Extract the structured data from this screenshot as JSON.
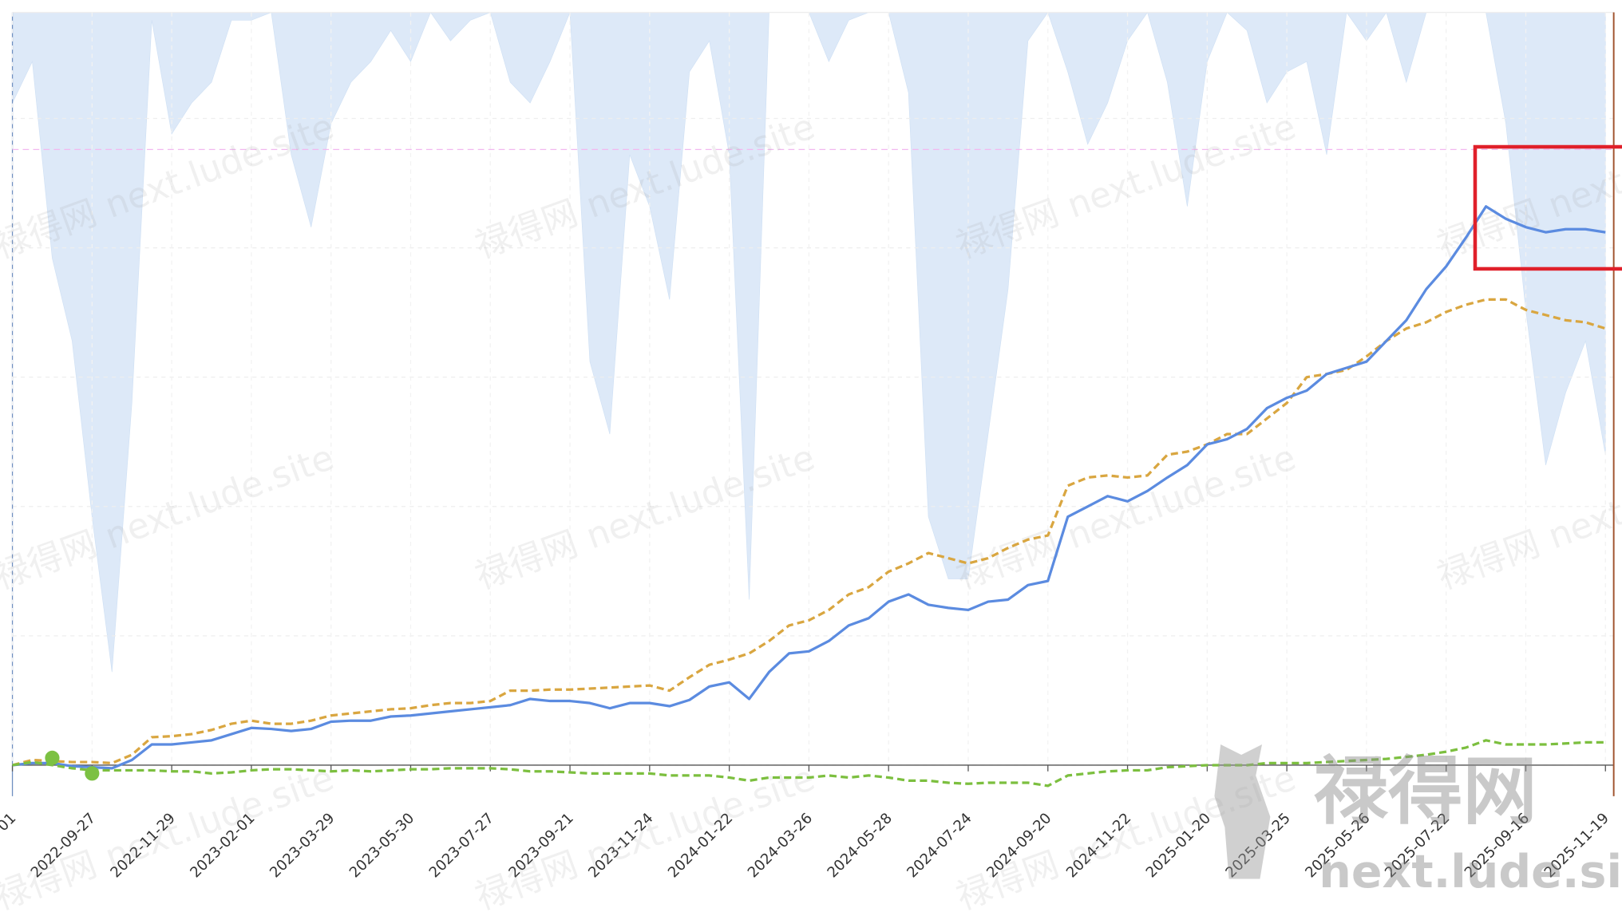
{
  "chart_data": {
    "type": "line",
    "categories": [
      "01",
      null,
      null,
      null,
      "2022-09-27",
      null,
      null,
      null,
      "2022-11-29",
      null,
      null,
      null,
      "2023-02-01",
      null,
      null,
      null,
      "2023-03-29",
      null,
      null,
      null,
      "2023-05-30",
      null,
      null,
      null,
      "2023-07-27",
      null,
      null,
      null,
      "2023-09-21",
      null,
      null,
      null,
      "2023-11-24",
      null,
      null,
      null,
      "2024-01-22",
      null,
      null,
      null,
      "2024-03-26",
      null,
      null,
      null,
      "2024-05-28",
      null,
      null,
      null,
      "2024-07-24",
      null,
      null,
      null,
      "2024-09-20",
      null,
      null,
      null,
      "2024-11-22",
      null,
      null,
      null,
      "2025-01-20",
      null,
      null,
      null,
      "2025-03-25",
      null,
      null,
      null,
      "2025-05-26",
      null,
      null,
      null,
      "2025-07-22",
      null,
      null,
      null,
      "2025-09-16",
      null,
      null,
      null,
      "2025-11-19"
    ],
    "series": [
      {
        "type": "area",
        "axis": "y2",
        "color": "#dde9f8",
        "values": [
          -3.5,
          -1.9,
          -9.5,
          -12.7,
          -19.5,
          -25.5,
          -15.1,
          -0.3,
          -4.7,
          -3.5,
          -2.7,
          -0.3,
          -0.3,
          0,
          -5.5,
          -8.3,
          -4.3,
          -2.7,
          -1.9,
          -0.7,
          -1.9,
          0,
          -1.1,
          -0.3,
          0,
          -2.7,
          -3.5,
          -1.9,
          0,
          -13.5,
          -16.3,
          -5.5,
          -7.5,
          -11.1,
          -2.3,
          -1.1,
          -5.5,
          -22.7,
          0,
          0,
          0,
          -1.9,
          -0.3,
          0,
          0,
          -3.1,
          -19.5,
          -21.9,
          -21.9,
          -16.3,
          -10.7,
          -1.1,
          0,
          -2.3,
          -5.1,
          -3.5,
          -1.1,
          0,
          -2.7,
          -7.5,
          -1.9,
          0,
          -0.7,
          -3.5,
          -2.3,
          -1.9,
          -5.5,
          0,
          -1.1,
          0,
          -2.7,
          0,
          0,
          0,
          0,
          -4.3,
          -11.5,
          -17.5,
          -14.7,
          -12.7,
          -17.1
        ]
      },
      {
        "type": "line",
        "color": "#d9a640",
        "dash": true,
        "values": [
          0,
          2,
          1.6,
          1.2,
          1.2,
          0.8,
          4,
          10.8,
          11.2,
          12,
          13.6,
          16,
          17.2,
          16,
          16,
          17.2,
          19.2,
          20,
          20.8,
          21.6,
          22,
          23.2,
          24,
          24,
          24.8,
          28.8,
          28.8,
          29.2,
          29.2,
          29.6,
          30,
          30.4,
          30.8,
          28.8,
          34,
          38.8,
          40.8,
          43.2,
          48,
          54,
          56,
          60,
          66,
          68.8,
          74.8,
          78,
          82,
          80,
          78,
          80,
          84,
          87.2,
          88.8,
          108,
          111.2,
          112,
          111.2,
          112,
          120,
          121.2,
          124,
          128,
          128,
          134,
          140,
          150,
          151.2,
          152.8,
          158,
          164,
          168.8,
          171.2,
          175.2,
          178,
          180,
          180,
          176,
          174,
          172,
          171.2,
          168.8
        ]
      },
      {
        "type": "line",
        "color": "#5b8be0",
        "dash": false,
        "values": [
          0,
          0.8,
          0.8,
          -0.4,
          -0.8,
          -1.2,
          2,
          8,
          8,
          8.8,
          9.6,
          12,
          14.4,
          14,
          13.2,
          14,
          16.8,
          17.2,
          17.2,
          18.8,
          19.2,
          20,
          20.8,
          21.6,
          22.4,
          23.2,
          25.6,
          24.8,
          24.8,
          24,
          22,
          24,
          24,
          22.8,
          25.2,
          30.4,
          32,
          25.6,
          36,
          43.2,
          44,
          48,
          54,
          56.8,
          63.2,
          66,
          62,
          60.8,
          60,
          63.2,
          64,
          69.6,
          71.2,
          96,
          100,
          104,
          102,
          106,
          111.2,
          116,
          124,
          126,
          130,
          138,
          142,
          144.8,
          151.2,
          153.6,
          156,
          164,
          172,
          184,
          192.8,
          204,
          216,
          211.2,
          208,
          206,
          207.2,
          207.2,
          206
        ]
      },
      {
        "type": "line",
        "color": "#7cbf3f",
        "dash": true,
        "values": [
          0,
          1.2,
          0,
          -1.2,
          -2,
          -2,
          -2,
          -2,
          -2.4,
          -2.4,
          -3.2,
          -2.8,
          -2,
          -1.6,
          -1.6,
          -2,
          -2.4,
          -2,
          -2.4,
          -2,
          -1.6,
          -1.6,
          -1.2,
          -1.2,
          -1.2,
          -1.6,
          -2.4,
          -2.4,
          -2.8,
          -3.2,
          -3.2,
          -3.2,
          -3.2,
          -4,
          -4,
          -4,
          -4.8,
          -6,
          -4.8,
          -4.8,
          -4.8,
          -4,
          -4.8,
          -4,
          -4.8,
          -6,
          -6,
          -6.8,
          -7.2,
          -6.8,
          -6.8,
          -6.8,
          -8,
          -4,
          -3.2,
          -2.4,
          -2,
          -2,
          -0.8,
          -0.4,
          0,
          0,
          0,
          0.8,
          0.8,
          0.8,
          1.2,
          1.6,
          2,
          2.4,
          3.2,
          4,
          5.2,
          6.8,
          9.6,
          8,
          8,
          8,
          8.4,
          8.8,
          8.8
        ]
      },
      {
        "type": "scatter",
        "color": "#7cc142",
        "values": [
          null,
          null,
          2.8,
          null,
          -3.2,
          null,
          null,
          null,
          null,
          null,
          null,
          null,
          null,
          null,
          null,
          null,
          null,
          null,
          null,
          null,
          null,
          null,
          null,
          null,
          null,
          null,
          null,
          null,
          null,
          null,
          null,
          null,
          null,
          null,
          null,
          null,
          null,
          null,
          null,
          null,
          null,
          null,
          null,
          null,
          null,
          null,
          null,
          null,
          null,
          null,
          null,
          null,
          null,
          null,
          null,
          null,
          null,
          null,
          null,
          null,
          null,
          null,
          null,
          null,
          null,
          null,
          null,
          null,
          null,
          null,
          null,
          null,
          null,
          null,
          null,
          null,
          null,
          null,
          null,
          null,
          null
        ]
      }
    ],
    "ylim": [
      -12,
      291
    ],
    "yticks": [
      0,
      50,
      100,
      150,
      200,
      250
    ],
    "y2lim": [
      -30.3,
      0
    ],
    "hline": {
      "value": 238,
      "color": "#f2b8f0"
    },
    "grid": true,
    "watermark": {
      "brand": "禄得网",
      "site": "next.lude.site"
    }
  }
}
